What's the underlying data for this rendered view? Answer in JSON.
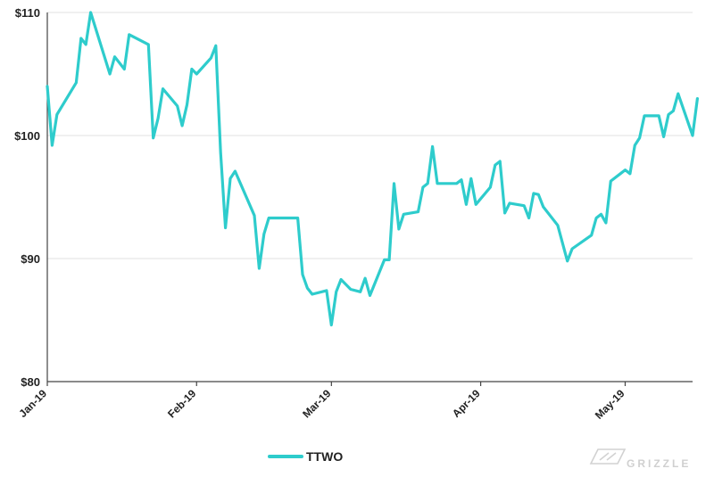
{
  "chart_data": {
    "type": "line",
    "title": "",
    "xlabel": "",
    "ylabel": "",
    "x_tick_labels": [
      {
        "label": "Jan-19",
        "date": "2019-01-01"
      },
      {
        "label": "Feb-19",
        "date": "2019-02-01"
      },
      {
        "label": "Mar-19",
        "date": "2019-03-01"
      },
      {
        "label": "Apr-19",
        "date": "2019-04-01"
      },
      {
        "label": "May-19",
        "date": "2019-05-01"
      }
    ],
    "y_tick_labels": [
      "$80",
      "$90",
      "$100",
      "$110"
    ],
    "y_ticks": [
      80,
      90,
      100,
      110
    ],
    "ylim": [
      80,
      110
    ],
    "xlim": [
      "2019-01-01",
      "2019-05-15"
    ],
    "grid": "horizontal",
    "legend": "bottom-left",
    "series": [
      {
        "name": "TTWO",
        "color": "#2ecccc",
        "points": [
          [
            "2019-01-01",
            104.0
          ],
          [
            "2019-01-02",
            99.2
          ],
          [
            "2019-01-03",
            101.7
          ],
          [
            "2019-01-07",
            104.3
          ],
          [
            "2019-01-08",
            107.9
          ],
          [
            "2019-01-09",
            107.4
          ],
          [
            "2019-01-10",
            110.0
          ],
          [
            "2019-01-14",
            105.0
          ],
          [
            "2019-01-15",
            106.4
          ],
          [
            "2019-01-17",
            105.4
          ],
          [
            "2019-01-18",
            108.2
          ],
          [
            "2019-01-22",
            107.4
          ],
          [
            "2019-01-23",
            99.8
          ],
          [
            "2019-01-24",
            101.4
          ],
          [
            "2019-01-25",
            103.8
          ],
          [
            "2019-01-28",
            102.4
          ],
          [
            "2019-01-29",
            100.8
          ],
          [
            "2019-01-30",
            102.5
          ],
          [
            "2019-01-31",
            105.4
          ],
          [
            "2019-02-01",
            105.0
          ],
          [
            "2019-02-04",
            106.3
          ],
          [
            "2019-02-05",
            107.3
          ],
          [
            "2019-02-06",
            98.6
          ],
          [
            "2019-02-07",
            92.5
          ],
          [
            "2019-02-08",
            96.5
          ],
          [
            "2019-02-09",
            97.1
          ],
          [
            "2019-02-13",
            93.5
          ],
          [
            "2019-02-14",
            89.2
          ],
          [
            "2019-02-15",
            92.0
          ],
          [
            "2019-02-16",
            93.3
          ],
          [
            "2019-02-22",
            93.3
          ],
          [
            "2019-02-23",
            88.7
          ],
          [
            "2019-02-24",
            87.6
          ],
          [
            "2019-02-25",
            87.1
          ],
          [
            "2019-02-28",
            87.4
          ],
          [
            "2019-03-01",
            84.6
          ],
          [
            "2019-03-02",
            87.3
          ],
          [
            "2019-03-03",
            88.3
          ],
          [
            "2019-03-05",
            87.5
          ],
          [
            "2019-03-07",
            87.3
          ],
          [
            "2019-03-08",
            88.4
          ],
          [
            "2019-03-09",
            87.0
          ],
          [
            "2019-03-12",
            89.9
          ],
          [
            "2019-03-13",
            89.9
          ],
          [
            "2019-03-14",
            96.1
          ],
          [
            "2019-03-15",
            92.4
          ],
          [
            "2019-03-16",
            93.6
          ],
          [
            "2019-03-19",
            93.8
          ],
          [
            "2019-03-20",
            95.8
          ],
          [
            "2019-03-21",
            96.1
          ],
          [
            "2019-03-22",
            99.1
          ],
          [
            "2019-03-23",
            96.1
          ],
          [
            "2019-03-27",
            96.1
          ],
          [
            "2019-03-28",
            96.4
          ],
          [
            "2019-03-29",
            94.4
          ],
          [
            "2019-03-30",
            96.5
          ],
          [
            "2019-03-31",
            94.4
          ],
          [
            "2019-04-03",
            95.8
          ],
          [
            "2019-04-04",
            97.6
          ],
          [
            "2019-04-05",
            97.9
          ],
          [
            "2019-04-06",
            93.7
          ],
          [
            "2019-04-07",
            94.5
          ],
          [
            "2019-04-10",
            94.3
          ],
          [
            "2019-04-11",
            93.3
          ],
          [
            "2019-04-12",
            95.3
          ],
          [
            "2019-04-13",
            95.2
          ],
          [
            "2019-04-14",
            94.2
          ],
          [
            "2019-04-17",
            92.7
          ],
          [
            "2019-04-19",
            89.8
          ],
          [
            "2019-04-20",
            90.8
          ],
          [
            "2019-04-24",
            91.9
          ],
          [
            "2019-04-25",
            93.3
          ],
          [
            "2019-04-26",
            93.6
          ],
          [
            "2019-04-27",
            92.9
          ],
          [
            "2019-04-28",
            96.3
          ],
          [
            "2019-04-30",
            96.9
          ],
          [
            "2019-05-01",
            97.2
          ],
          [
            "2019-05-02",
            96.9
          ],
          [
            "2019-05-03",
            99.2
          ],
          [
            "2019-05-04",
            99.8
          ],
          [
            "2019-05-05",
            101.6
          ],
          [
            "2019-05-08",
            101.6
          ],
          [
            "2019-05-09",
            99.9
          ],
          [
            "2019-05-10",
            101.7
          ],
          [
            "2019-05-11",
            102.0
          ],
          [
            "2019-05-12",
            103.4
          ],
          [
            "2019-05-15",
            100.0
          ],
          [
            "2019-05-16",
            103.0
          ]
        ]
      }
    ]
  },
  "watermark": {
    "text": "GRIZZLE"
  }
}
